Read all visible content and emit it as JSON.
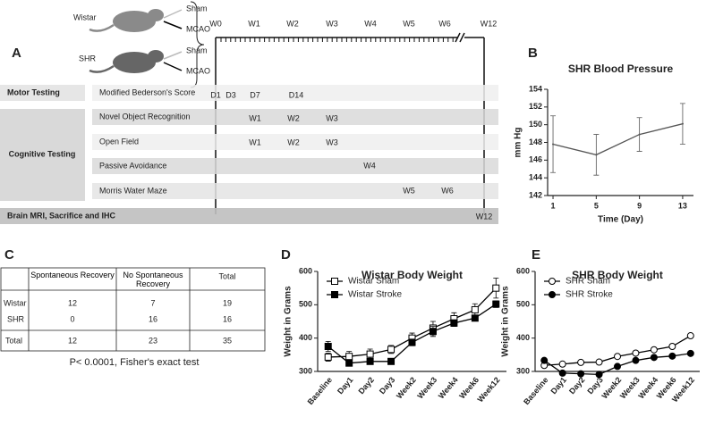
{
  "panel_labels": [
    "A",
    "B",
    "C",
    "D",
    "E"
  ],
  "timeline": {
    "groups": [
      {
        "label": "Wistar",
        "arms": [
          "Sham",
          "MCAO"
        ]
      },
      {
        "label": "SHR",
        "arms": [
          "Sham",
          "MCAO"
        ]
      }
    ],
    "weeks": [
      "W0",
      "W1",
      "W2",
      "W3",
      "W4",
      "W5",
      "W6",
      "W12"
    ],
    "rows": [
      {
        "category": "Motor Testing",
        "tests": [
          {
            "name": "Modified Bederson's Score",
            "times": [
              "D1",
              "D3",
              "D7",
              "D14"
            ]
          }
        ]
      },
      {
        "category": "Cognitive Testing",
        "tests": [
          {
            "name": "Novel Object Recognition",
            "times": [
              "W1",
              "W2",
              "W3"
            ]
          },
          {
            "name": "Open Field",
            "times": [
              "W1",
              "W2",
              "W3"
            ]
          },
          {
            "name": "Passive Avoidance",
            "times": [
              "W4"
            ]
          },
          {
            "name": "Morris Water Maze",
            "times": [
              "W5",
              "W6"
            ]
          }
        ]
      }
    ],
    "final": {
      "name": "Brain MRI, Sacrifice and IHC",
      "time": "W12"
    }
  },
  "table": {
    "header": [
      "Spontaneous Recovery",
      "No Spontaneous Recovery",
      "Total"
    ],
    "rows": [
      {
        "label": "Wistar",
        "cells": [
          12,
          7,
          19
        ]
      },
      {
        "label": "SHR",
        "cells": [
          0,
          16,
          16
        ]
      },
      {
        "label": "Total",
        "cells": [
          12,
          23,
          35
        ]
      }
    ],
    "footnote": "P< 0.0001, Fisher's exact test"
  },
  "chart_data": [
    {
      "type": "line",
      "title": "SHR Blood Pressure",
      "x_label": "Time (Day)",
      "y_label": "mm Hg",
      "x": [
        1,
        5,
        9,
        13
      ],
      "xlim": [
        0.5,
        14
      ],
      "xticks": [
        1,
        5,
        9,
        13
      ],
      "ylim": [
        142,
        154
      ],
      "yticks": [
        142,
        144,
        146,
        148,
        150,
        152,
        154
      ],
      "series": [
        {
          "color": "#555555",
          "marker": "none",
          "values": [
            147.8,
            146.6,
            148.9,
            150.1
          ],
          "errors": [
            3.2,
            2.3,
            1.9,
            2.3
          ]
        }
      ]
    },
    {
      "type": "line",
      "title": "Wistar Body Weight",
      "y_label": "Weight in Grams",
      "categories": [
        "Baseline",
        "Day1",
        "Day2",
        "Day3",
        "Week2",
        "Week3",
        "Week4",
        "Week6",
        "Week12"
      ],
      "ylim": [
        300,
        600
      ],
      "yticks": [
        300,
        400,
        500,
        600
      ],
      "legend": "upper left",
      "series": [
        {
          "name": "Wistar Sham",
          "color": "#000000",
          "marker": "square-open",
          "values": [
            343,
            345,
            352,
            366,
            400,
            430,
            458,
            485,
            550
          ],
          "errors": [
            12,
            15,
            15,
            12,
            15,
            20,
            18,
            18,
            30
          ]
        },
        {
          "name": "Wistar Stroke",
          "color": "#000000",
          "marker": "square",
          "values": [
            375,
            325,
            330,
            330,
            387,
            420,
            445,
            460,
            502
          ],
          "errors": [
            15,
            8,
            8,
            8,
            10,
            15,
            10,
            8,
            10
          ]
        }
      ]
    },
    {
      "type": "line",
      "title": "SHR Body Weight",
      "y_label": "Weight in Grams",
      "categories": [
        "Baseline",
        "Day1",
        "Day2",
        "Day3",
        "Week2",
        "Week3",
        "Week4",
        "Week6",
        "Week12"
      ],
      "ylim": [
        300,
        600
      ],
      "yticks": [
        300,
        400,
        500,
        600
      ],
      "legend": "upper left",
      "series": [
        {
          "name": "SHR Sham",
          "color": "#000000",
          "marker": "circle-open",
          "values": [
            318,
            322,
            327,
            328,
            345,
            355,
            365,
            375,
            407
          ]
        },
        {
          "name": "SHR Stroke",
          "color": "#000000",
          "marker": "circle",
          "values": [
            333,
            295,
            293,
            291,
            315,
            333,
            342,
            346,
            354
          ]
        }
      ]
    }
  ]
}
